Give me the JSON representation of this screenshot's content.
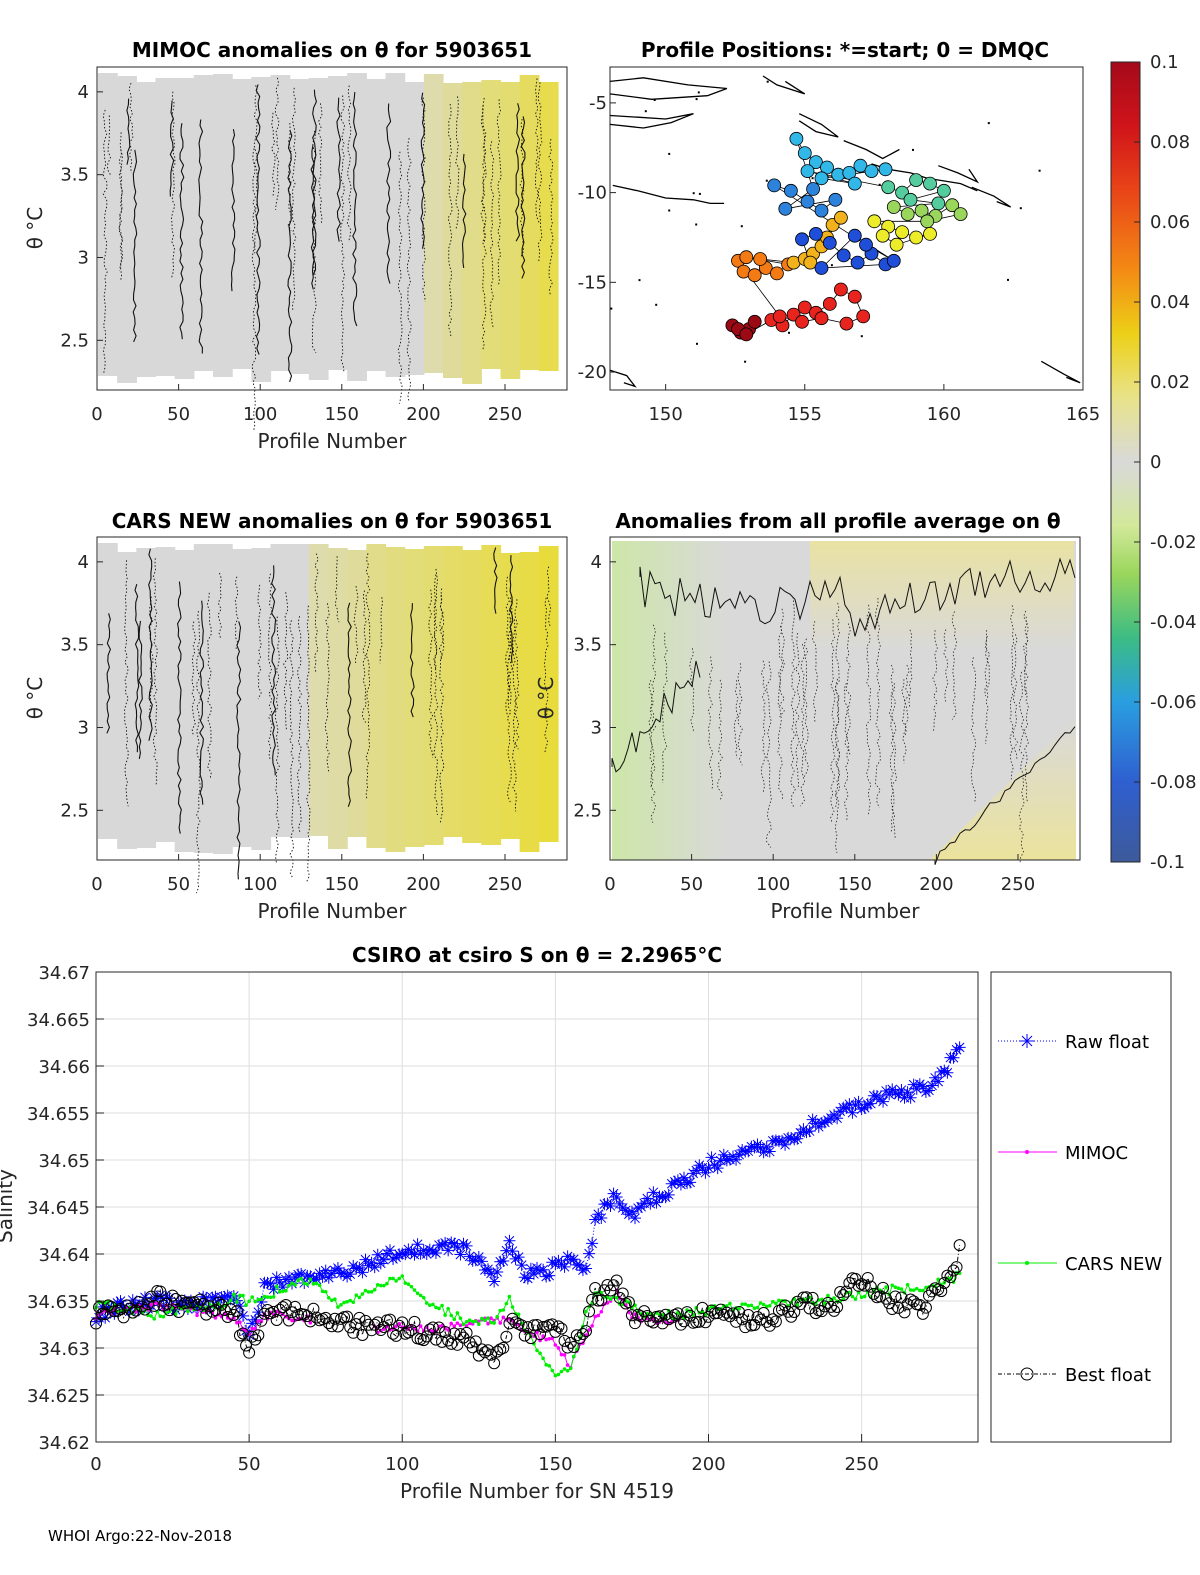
{
  "footer": "WHOI Argo:22-Nov-2018",
  "chart_data": [
    {
      "type": "heatmap",
      "title": "MIMOC anomalies on θ  for 5903651",
      "xlabel": "Profile Number",
      "ylabel": "θ °C",
      "xlim": [
        0,
        288
      ],
      "ylim": [
        2.2,
        4.15
      ],
      "xticks": [
        "0",
        "50",
        "100",
        "150",
        "200",
        "250"
      ],
      "yticks": [
        "2.5",
        "3",
        "3.5",
        "4"
      ],
      "anomaly_columns": [
        0,
        0,
        0,
        0,
        0,
        0,
        0,
        0,
        0,
        0,
        0,
        0,
        0,
        0,
        0,
        0,
        0.002,
        0.004,
        0.008,
        0.012,
        0.016,
        0.018,
        0.022,
        0.026
      ]
    },
    {
      "type": "map",
      "title": "Profile Positions: *=start; 0 = DMQC",
      "xlim": [
        148,
        165
      ],
      "ylim": [
        -21,
        -3
      ],
      "xticks": [
        "150",
        "155",
        "160",
        "165"
      ],
      "yticks": [
        "-5",
        "-10",
        "-15",
        "-20"
      ],
      "track_clusters": [
        {
          "name": "dark-red",
          "color": "#9b0a14",
          "lon": [
            152.4,
            152.7,
            153.0,
            153.2,
            152.6,
            152.9
          ],
          "lat": [
            -17.4,
            -17.8,
            -17.6,
            -17.2,
            -17.6,
            -17.9
          ]
        },
        {
          "name": "red",
          "color": "#e8241e",
          "lon": [
            153.8,
            154.2,
            154.6,
            155.0,
            155.4,
            155.9,
            156.3,
            156.8,
            157.1,
            156.5,
            155.6,
            154.9,
            154.1
          ],
          "lat": [
            -17.1,
            -17.4,
            -16.8,
            -16.4,
            -16.7,
            -16.2,
            -15.4,
            -15.8,
            -16.9,
            -17.3,
            -17.0,
            -17.2,
            -16.9
          ]
        },
        {
          "name": "orange",
          "color": "#f47a14",
          "lon": [
            152.6,
            152.8,
            153.2,
            153.6,
            154.0,
            154.4,
            152.9,
            153.4
          ],
          "lat": [
            -13.8,
            -14.4,
            -14.6,
            -14.2,
            -14.5,
            -14.0,
            -13.6,
            -13.7
          ]
        },
        {
          "name": "gold",
          "color": "#f2b21c",
          "lon": [
            154.6,
            155.0,
            155.3,
            155.6,
            155.8,
            156.0,
            156.3,
            155.2
          ],
          "lat": [
            -13.9,
            -13.7,
            -13.4,
            -13.0,
            -12.5,
            -11.8,
            -11.4,
            -13.9
          ]
        },
        {
          "name": "blue",
          "color": "#1f4ed8",
          "lon": [
            154.9,
            155.4,
            155.9,
            156.4,
            156.9,
            157.4,
            157.9,
            155.6,
            156.8,
            158.2,
            157.2
          ],
          "lat": [
            -12.6,
            -12.3,
            -12.8,
            -13.5,
            -13.9,
            -13.4,
            -14.0,
            -14.2,
            -12.4,
            -13.8,
            -12.9
          ]
        },
        {
          "name": "med-blue",
          "color": "#2d83dc",
          "lon": [
            153.9,
            154.5,
            155.1,
            155.6,
            156.1,
            154.3,
            155.3
          ],
          "lat": [
            -9.6,
            -9.9,
            -10.5,
            -11.0,
            -10.4,
            -10.9,
            -9.8
          ]
        },
        {
          "name": "cyan",
          "color": "#32b8e8",
          "lon": [
            154.7,
            155.0,
            155.4,
            155.8,
            156.2,
            156.6,
            157.0,
            157.4,
            157.9,
            155.6,
            156.8,
            155.1
          ],
          "lat": [
            -7.0,
            -7.8,
            -8.3,
            -8.6,
            -9.0,
            -8.9,
            -8.5,
            -8.8,
            -8.7,
            -9.2,
            -9.5,
            -8.8
          ]
        },
        {
          "name": "teal",
          "color": "#55cc9e",
          "lon": [
            158.0,
            158.5,
            159.0,
            159.5,
            160.0,
            158.8,
            159.8
          ],
          "lat": [
            -9.7,
            -10.0,
            -9.3,
            -9.5,
            -9.9,
            -10.4,
            -10.6
          ]
        },
        {
          "name": "green",
          "color": "#9ad65c",
          "lon": [
            158.2,
            158.7,
            159.2,
            159.7,
            160.3,
            160.6,
            159.4
          ],
          "lat": [
            -10.8,
            -11.2,
            -11.0,
            -11.3,
            -10.7,
            -11.2,
            -11.6
          ]
        },
        {
          "name": "yellow",
          "color": "#ecec2a",
          "lon": [
            157.5,
            158.0,
            158.5,
            159.0,
            159.5,
            158.3,
            157.8
          ],
          "lat": [
            -11.6,
            -11.9,
            -12.2,
            -12.5,
            -12.3,
            -12.9,
            -12.4
          ]
        }
      ]
    },
    {
      "type": "colorbar",
      "ticks": [
        "0.1",
        "0.08",
        "0.06",
        "0.04",
        "0.02",
        "0",
        "-0.02",
        "-0.04",
        "-0.06",
        "-0.08",
        "-0.1"
      ],
      "range": [
        -0.1,
        0.1
      ],
      "colors": [
        "#3d5a9a",
        "#2f6fd6",
        "#2a9ee0",
        "#3bbfb3",
        "#58c46a",
        "#a8dc6a",
        "#e8ea9a",
        "#d9d9d9",
        "#e8e38a",
        "#ecce16",
        "#f4a51a",
        "#f07818",
        "#e84418",
        "#c9101a",
        "#a50a1a"
      ]
    },
    {
      "type": "heatmap",
      "title": "CARS NEW anomalies on θ for 5903651",
      "xlabel": "Profile Number",
      "ylabel": "θ °C",
      "xlim": [
        0,
        288
      ],
      "ylim": [
        2.2,
        4.15
      ],
      "xticks": [
        "0",
        "50",
        "100",
        "150",
        "200",
        "250"
      ],
      "yticks": [
        "2.5",
        "3",
        "3.5",
        "4"
      ],
      "anomaly_columns": [
        0,
        0,
        0,
        0,
        0,
        0,
        0,
        0,
        0,
        0,
        0.002,
        0.004,
        0.006,
        0.008,
        0.012,
        0.014,
        0.016,
        0.018,
        0.02,
        0.022,
        0.024,
        0.026,
        0.028,
        0.03
      ]
    },
    {
      "type": "heatmap",
      "title": "Anomalies from all profile average on θ",
      "xlabel": "Profile Number",
      "ylabel": "θ °C",
      "xlim": [
        0,
        288
      ],
      "ylim": [
        2.2,
        4.15
      ],
      "xticks": [
        "0",
        "50",
        "100",
        "150",
        "200",
        "250"
      ],
      "yticks": [
        "2.5",
        "3",
        "3.5",
        "4"
      ]
    },
    {
      "type": "line",
      "title": "CSIRO at csiro S on θ = 2.2965°C",
      "xlabel": "Profile Number for SN 4519",
      "ylabel": "Salinity",
      "xlim": [
        0,
        288
      ],
      "ylim": [
        34.62,
        34.67
      ],
      "xticks": [
        "0",
        "50",
        "100",
        "150",
        "200",
        "250"
      ],
      "yticks": [
        "34.62",
        "34.625",
        "34.63",
        "34.635",
        "34.64",
        "34.645",
        "34.65",
        "34.655",
        "34.66",
        "34.665",
        "34.67"
      ],
      "grid": true,
      "legend": [
        "Raw float",
        "MIMOC",
        "CARS NEW",
        "Best float"
      ],
      "x_knots": [
        0,
        10,
        20,
        30,
        40,
        45,
        50,
        55,
        60,
        70,
        80,
        90,
        100,
        110,
        120,
        130,
        135,
        140,
        150,
        155,
        160,
        163,
        170,
        175,
        180,
        190,
        200,
        210,
        220,
        230,
        240,
        250,
        260,
        270,
        278,
        282
      ],
      "series": [
        {
          "name": "Raw float",
          "color": "#0000ff",
          "values": [
            34.6335,
            34.6345,
            34.635,
            34.6345,
            34.635,
            34.6355,
            34.6315,
            34.6365,
            34.637,
            34.6375,
            34.638,
            34.639,
            34.6402,
            34.6408,
            34.6405,
            34.6375,
            34.641,
            34.6378,
            34.6385,
            34.6395,
            34.6385,
            34.6435,
            34.6465,
            34.644,
            34.6455,
            34.6475,
            34.6495,
            34.6505,
            34.6515,
            34.653,
            34.6545,
            34.656,
            34.657,
            34.6575,
            34.6595,
            34.6625
          ]
        },
        {
          "name": "MIMOC",
          "color": "#ff00ff",
          "values": [
            34.6335,
            34.634,
            34.6345,
            34.634,
            34.6335,
            34.633,
            34.6315,
            34.6335,
            34.6335,
            34.633,
            null,
            34.632,
            34.6322,
            34.6318,
            34.6325,
            34.633,
            34.633,
            34.6318,
            34.6305,
            34.628,
            34.6315,
            34.633,
            34.636,
            34.6335,
            34.633,
            34.633,
            null,
            null,
            null,
            null,
            null,
            null,
            null,
            null,
            null,
            null
          ]
        },
        {
          "name": "CARS NEW",
          "color": "#00ee00",
          "values": [
            34.6348,
            34.6342,
            34.6335,
            34.6342,
            34.6345,
            34.6352,
            34.635,
            34.6355,
            34.6362,
            34.6372,
            34.6345,
            34.636,
            34.6375,
            34.6345,
            34.633,
            34.6328,
            34.635,
            34.632,
            34.627,
            34.6275,
            34.6335,
            34.6358,
            34.6352,
            34.6345,
            34.6335,
            34.6335,
            34.634,
            34.6345,
            34.6348,
            34.6348,
            34.6352,
            34.6358,
            34.6362,
            34.6365,
            34.6372,
            34.6378
          ]
        },
        {
          "name": "Best float",
          "color": "#000000",
          "values": [
            34.6335,
            34.634,
            34.6352,
            34.6345,
            34.634,
            34.634,
            34.6295,
            34.634,
            34.6338,
            34.6335,
            34.6328,
            34.632,
            34.6322,
            34.6315,
            34.631,
            34.6285,
            34.6325,
            34.6315,
            34.6318,
            34.6305,
            34.6325,
            34.6355,
            34.6365,
            34.6335,
            34.6332,
            34.6332,
            34.6335,
            34.633,
            34.6328,
            34.6345,
            34.6345,
            34.6375,
            34.635,
            34.634,
            34.637,
            34.6402
          ]
        }
      ]
    }
  ]
}
